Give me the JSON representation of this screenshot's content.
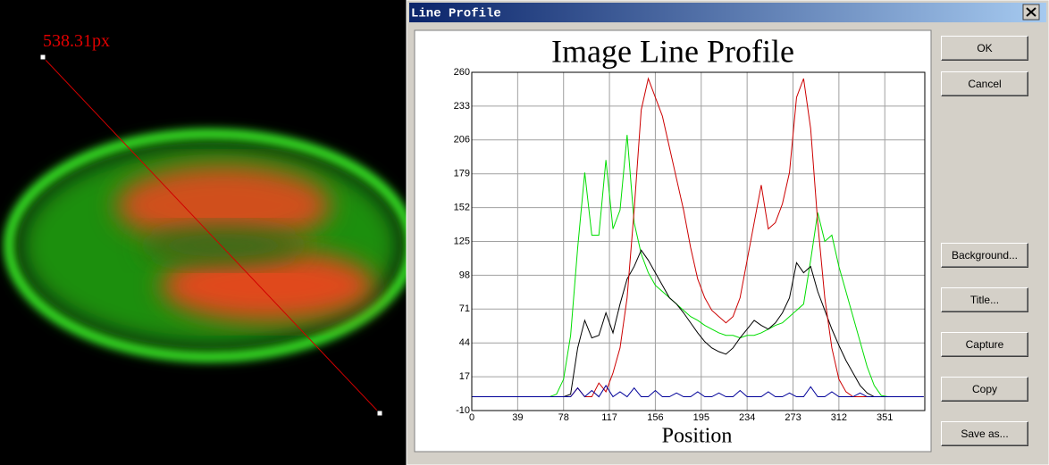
{
  "image": {
    "measurement": "538.31px"
  },
  "window": {
    "title": "Line Profile"
  },
  "buttons": [
    "OK",
    "Cancel",
    "Background...",
    "Title...",
    "Capture",
    "Copy",
    "Save as..."
  ],
  "chart_data": {
    "type": "line",
    "title": "Image Line Profile",
    "x_label": "Position",
    "x": [
      0,
      6,
      12,
      18,
      24,
      30,
      36,
      42,
      48,
      54,
      60,
      66,
      72,
      78,
      84,
      90,
      96,
      102,
      108,
      114,
      120,
      126,
      132,
      138,
      144,
      150,
      156,
      162,
      168,
      174,
      180,
      186,
      192,
      198,
      204,
      210,
      216,
      222,
      228,
      234,
      240,
      246,
      252,
      258,
      264,
      270,
      276,
      282,
      288,
      294,
      300,
      306,
      312,
      318,
      324,
      330,
      336,
      342,
      348,
      354,
      360,
      366,
      372,
      378,
      384
    ],
    "series": [
      {
        "color": "#00dd00",
        "values": [
          1,
          1,
          1,
          1,
          1,
          1,
          1,
          1,
          1,
          1,
          1,
          1,
          3,
          15,
          50,
          120,
          180,
          130,
          130,
          190,
          135,
          150,
          210,
          140,
          115,
          100,
          90,
          85,
          80,
          75,
          70,
          65,
          62,
          58,
          55,
          52,
          50,
          50,
          48,
          50,
          50,
          52,
          55,
          58,
          60,
          65,
          70,
          75,
          110,
          148,
          125,
          130,
          105,
          85,
          65,
          45,
          25,
          10,
          2,
          1,
          1,
          1,
          1,
          1,
          1
        ]
      },
      {
        "color": "#000000",
        "values": [
          1,
          1,
          1,
          1,
          1,
          1,
          1,
          1,
          1,
          1,
          1,
          1,
          1,
          1,
          3,
          40,
          62,
          48,
          50,
          68,
          52,
          75,
          95,
          105,
          118,
          110,
          100,
          90,
          80,
          75,
          68,
          60,
          52,
          45,
          40,
          37,
          35,
          40,
          48,
          55,
          62,
          58,
          55,
          60,
          68,
          80,
          108,
          100,
          105,
          85,
          70,
          55,
          42,
          30,
          20,
          10,
          4,
          1,
          1,
          1,
          1,
          1,
          1,
          1,
          1
        ]
      },
      {
        "color": "#cc0000",
        "values": [
          1,
          1,
          1,
          1,
          1,
          1,
          1,
          1,
          1,
          1,
          1,
          1,
          1,
          1,
          1,
          8,
          1,
          1,
          12,
          5,
          20,
          40,
          80,
          150,
          230,
          255,
          240,
          225,
          200,
          175,
          150,
          120,
          95,
          80,
          70,
          65,
          60,
          65,
          80,
          110,
          140,
          170,
          135,
          140,
          155,
          180,
          240,
          255,
          215,
          140,
          80,
          40,
          15,
          5,
          1,
          1,
          1,
          1,
          1,
          1,
          1,
          1,
          1,
          1,
          1
        ]
      },
      {
        "color": "#000099",
        "values": [
          1,
          1,
          1,
          1,
          1,
          1,
          1,
          1,
          1,
          1,
          1,
          1,
          1,
          1,
          1,
          8,
          1,
          6,
          1,
          10,
          1,
          5,
          1,
          8,
          1,
          1,
          6,
          1,
          1,
          4,
          1,
          1,
          5,
          1,
          1,
          4,
          1,
          1,
          6,
          1,
          1,
          1,
          5,
          1,
          1,
          4,
          1,
          1,
          9,
          1,
          1,
          5,
          1,
          1,
          1,
          4,
          1,
          1,
          1,
          1,
          1,
          1,
          1,
          1,
          1
        ]
      }
    ],
    "xlim": [
      0,
      385
    ],
    "ylim": [
      -10,
      260
    ],
    "xticks": [
      0,
      39,
      78,
      117,
      156,
      195,
      234,
      273,
      312,
      351
    ],
    "yticks": [
      -10,
      17,
      44,
      71,
      98,
      125,
      152,
      179,
      206,
      233,
      260
    ],
    "grid": true
  }
}
